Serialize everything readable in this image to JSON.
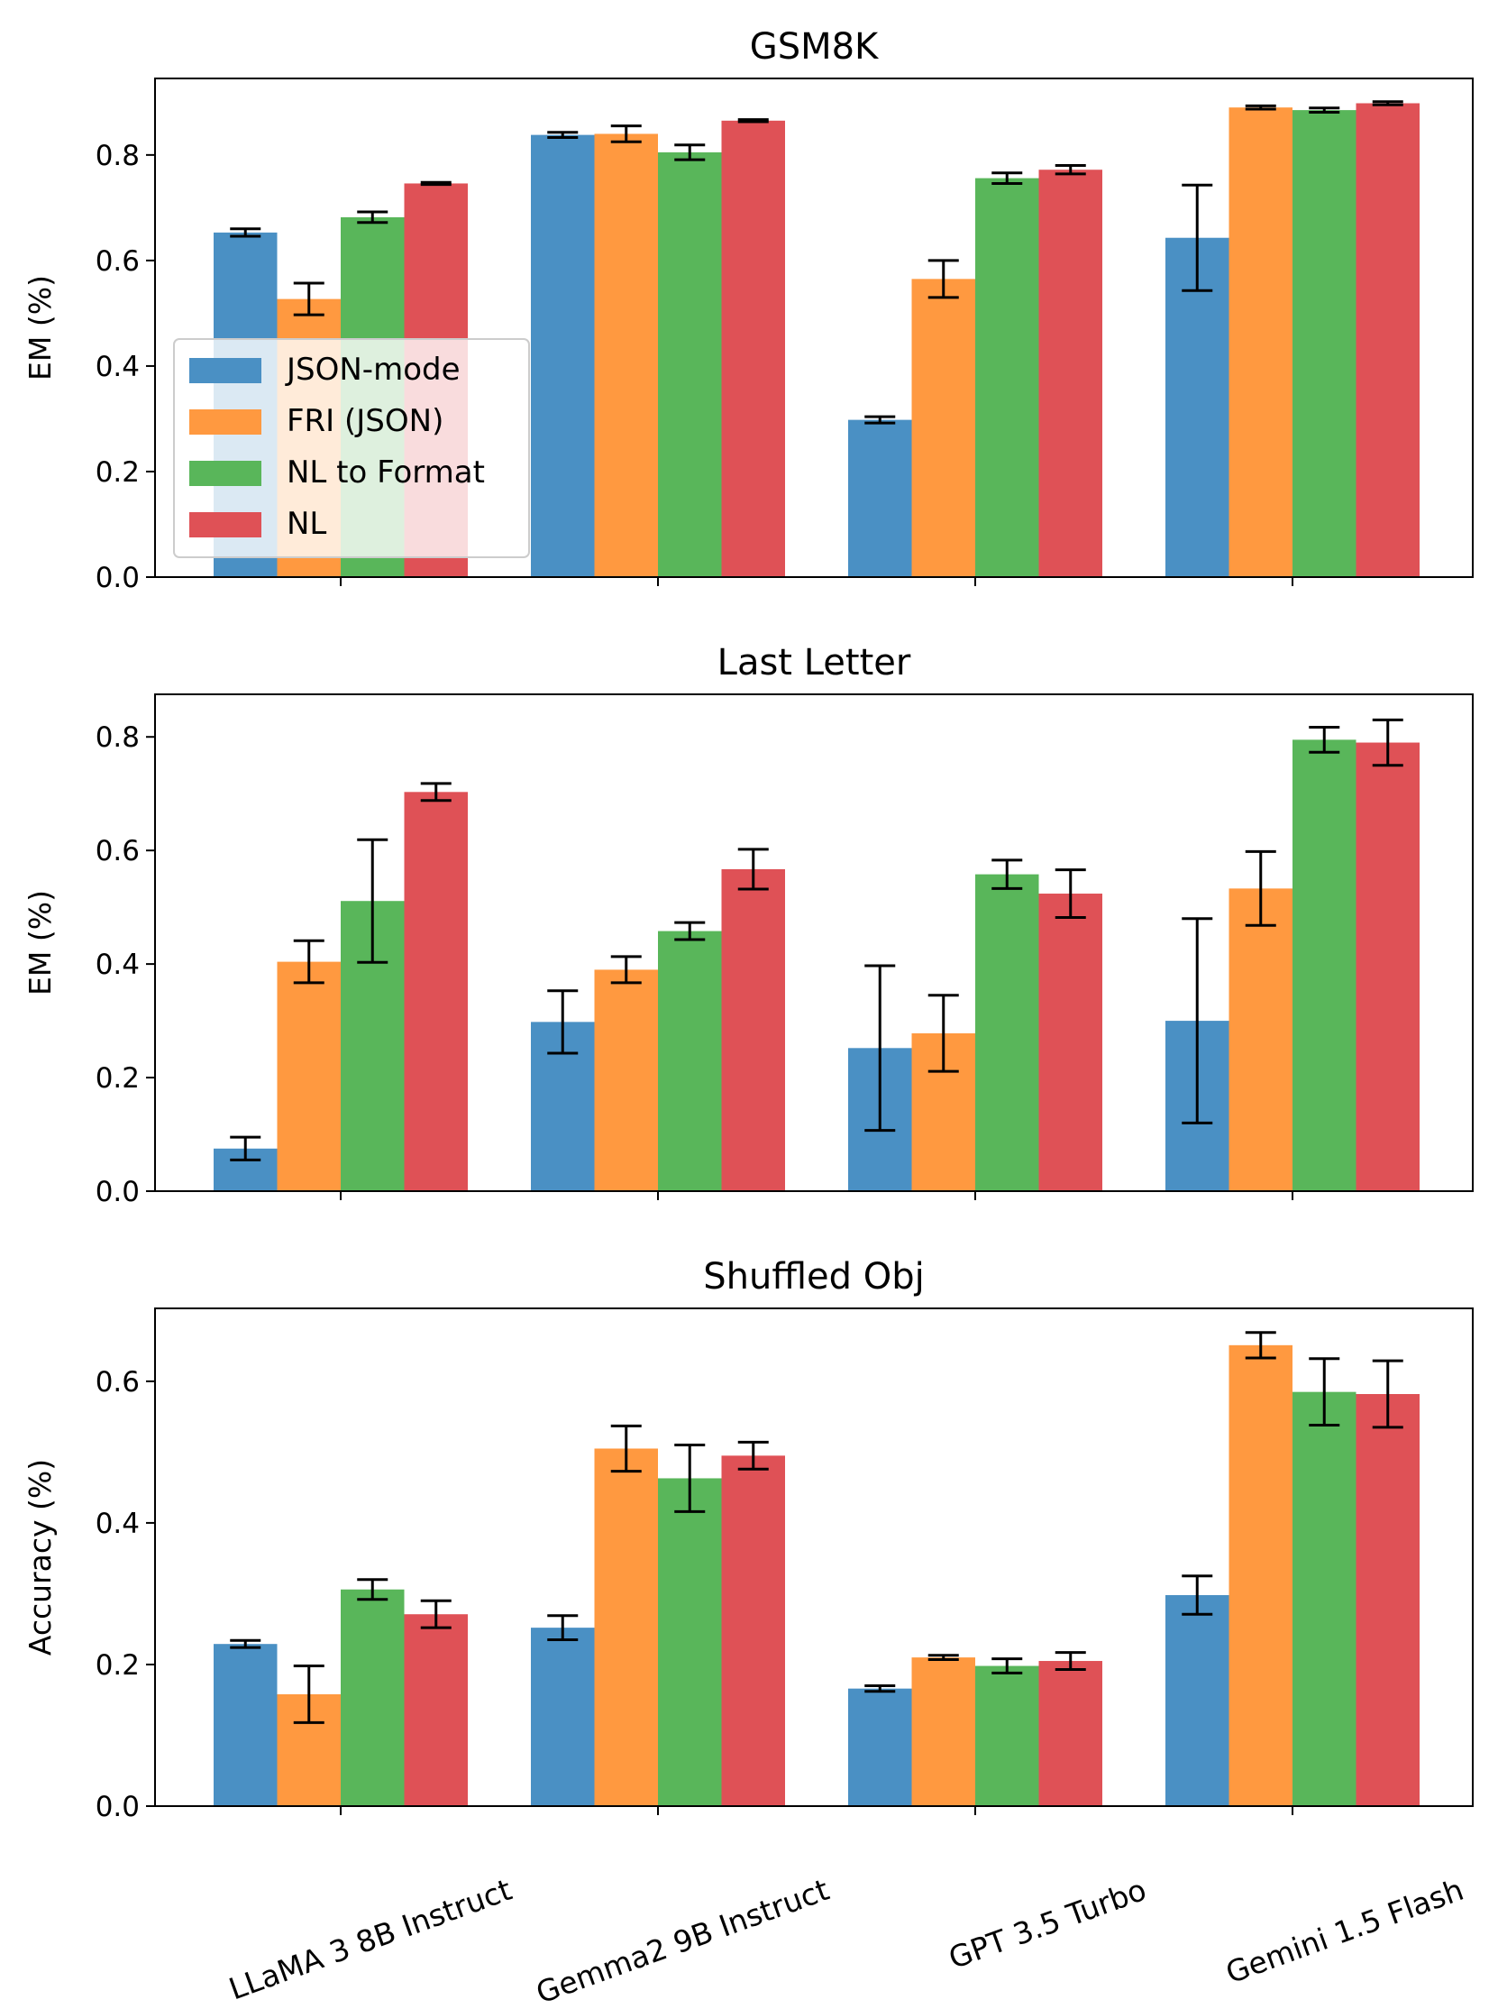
{
  "colors": {
    "JSON-mode": "#4a90c4",
    "FRI (JSON)": "#ff9940",
    "NL to Format": "#59b65a",
    "NL": "#df5156"
  },
  "chart_data": [
    {
      "type": "bar",
      "title": "GSM8K",
      "xlabel": "",
      "ylabel": "EM (%)",
      "ylim": [
        0,
        0.945
      ],
      "yticks": [
        "0.0",
        "0.2",
        "0.4",
        "0.6",
        "0.8"
      ],
      "categories": [
        "LLaMA 3 8B Instruct",
        "Gemma2 9B Instruct",
        "GPT 3.5 Turbo",
        "Gemini 1.5 Flash"
      ],
      "show_xticklabels": false,
      "legend": {
        "location": "center-left",
        "entries": [
          "JSON-mode",
          "FRI (JSON)",
          "NL to Format",
          "NL"
        ]
      },
      "series": [
        {
          "name": "JSON-mode",
          "values": [
            0.653,
            0.838,
            0.298,
            0.643
          ],
          "errors": [
            0.007,
            0.005,
            0.006,
            0.1
          ]
        },
        {
          "name": "FRI (JSON)",
          "values": [
            0.527,
            0.84,
            0.565,
            0.89
          ],
          "errors": [
            0.03,
            0.015,
            0.035,
            0.003
          ]
        },
        {
          "name": "NL to Format",
          "values": [
            0.682,
            0.805,
            0.756,
            0.885
          ],
          "errors": [
            0.01,
            0.014,
            0.01,
            0.004
          ]
        },
        {
          "name": "NL",
          "values": [
            0.746,
            0.865,
            0.772,
            0.898
          ],
          "errors": [
            0.002,
            0.002,
            0.008,
            0.003
          ]
        }
      ]
    },
    {
      "type": "bar",
      "title": "Last Letter",
      "xlabel": "",
      "ylabel": "EM (%)",
      "ylim": [
        0,
        0.875
      ],
      "yticks": [
        "0.0",
        "0.2",
        "0.4",
        "0.6",
        "0.8"
      ],
      "categories": [
        "LLaMA 3 8B Instruct",
        "Gemma2 9B Instruct",
        "GPT 3.5 Turbo",
        "Gemini 1.5 Flash"
      ],
      "show_xticklabels": false,
      "series": [
        {
          "name": "JSON-mode",
          "values": [
            0.075,
            0.298,
            0.252,
            0.3
          ],
          "errors": [
            0.02,
            0.055,
            0.145,
            0.18
          ]
        },
        {
          "name": "FRI (JSON)",
          "values": [
            0.404,
            0.39,
            0.278,
            0.533
          ],
          "errors": [
            0.037,
            0.023,
            0.067,
            0.065
          ]
        },
        {
          "name": "NL to Format",
          "values": [
            0.511,
            0.458,
            0.558,
            0.795
          ],
          "errors": [
            0.108,
            0.015,
            0.025,
            0.022
          ]
        },
        {
          "name": "NL",
          "values": [
            0.703,
            0.567,
            0.524,
            0.79
          ],
          "errors": [
            0.015,
            0.035,
            0.042,
            0.04
          ]
        }
      ]
    },
    {
      "type": "bar",
      "title": "Shuffled Obj",
      "xlabel": "",
      "ylabel": "Accuracy (%)",
      "ylim": [
        0,
        0.703
      ],
      "yticks": [
        "0.0",
        "0.2",
        "0.4",
        "0.6"
      ],
      "categories": [
        "LLaMA 3 8B Instruct",
        "Gemma2 9B Instruct",
        "GPT 3.5 Turbo",
        "Gemini 1.5 Flash"
      ],
      "show_xticklabels": true,
      "series": [
        {
          "name": "JSON-mode",
          "values": [
            0.229,
            0.252,
            0.166,
            0.298
          ],
          "errors": [
            0.005,
            0.017,
            0.004,
            0.027
          ]
        },
        {
          "name": "FRI (JSON)",
          "values": [
            0.158,
            0.505,
            0.21,
            0.651
          ],
          "errors": [
            0.04,
            0.032,
            0.003,
            0.018
          ]
        },
        {
          "name": "NL to Format",
          "values": [
            0.306,
            0.463,
            0.198,
            0.585
          ],
          "errors": [
            0.014,
            0.047,
            0.01,
            0.047
          ]
        },
        {
          "name": "NL",
          "values": [
            0.271,
            0.495,
            0.205,
            0.582
          ],
          "errors": [
            0.019,
            0.019,
            0.012,
            0.047
          ]
        }
      ]
    }
  ]
}
